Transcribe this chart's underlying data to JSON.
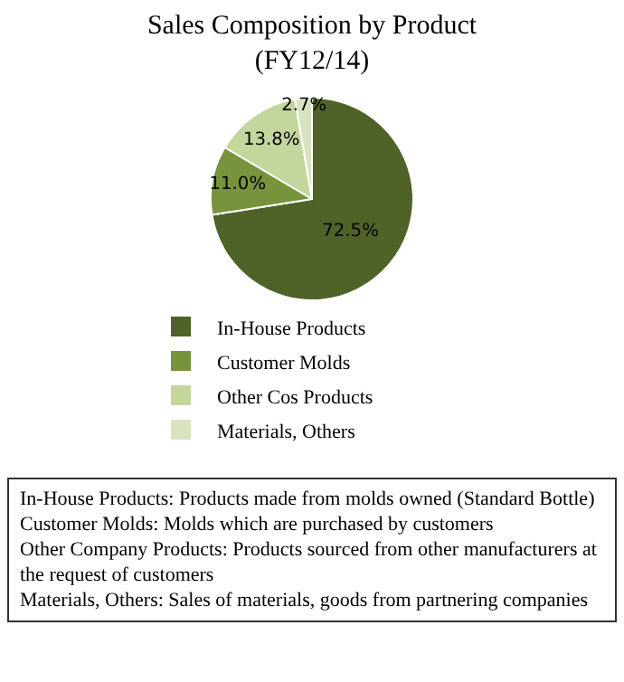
{
  "chart_data": {
    "type": "pie",
    "title": "Sales Composition by Product\n(FY12/14)",
    "categories": [
      "In-House Products",
      "Customer Molds",
      "Other Cos Products",
      "Materials, Others"
    ],
    "values": [
      72.5,
      11.0,
      13.8,
      2.7
    ],
    "colors": [
      "#4f6228",
      "#77933c",
      "#c3d69b",
      "#d7e4bd"
    ],
    "value_labels": [
      "72.5%",
      "11.0%",
      "13.8%",
      "2.7%"
    ],
    "legend": "bottom",
    "annotations": [
      "In-House Products:  Products made from molds owned (Standard Bottle)",
      "Customer Molds:  Molds which are purchased by customers",
      "Other Company Products:  Products sourced from other manufacturers at the request of customers",
      "Materials, Others:  Sales of materials, goods from partnering companies"
    ]
  }
}
